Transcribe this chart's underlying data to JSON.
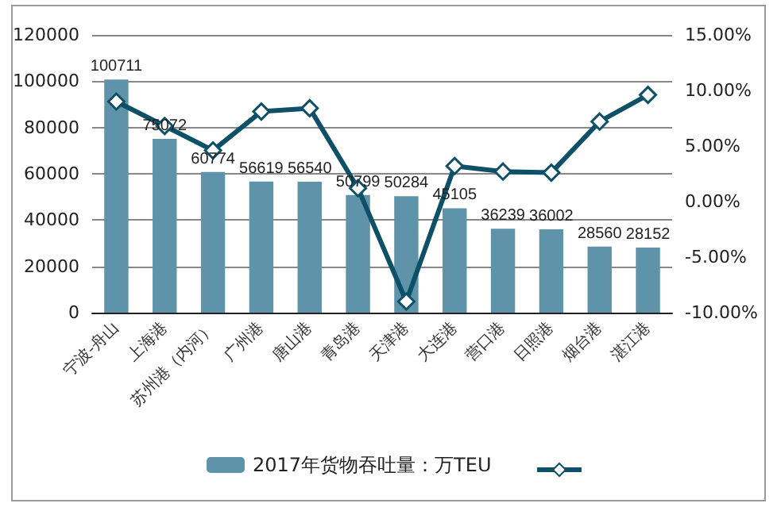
{
  "chart_data": {
    "type": "bar",
    "categories": [
      "宁波-舟山",
      "上海港",
      "苏州港（内河）",
      "广州港",
      "唐山港",
      "青岛港",
      "天津港",
      "大连港",
      "营口港",
      "日照港",
      "烟台港",
      "湛江港"
    ],
    "series": [
      {
        "name": "2017年货物吞吐量：万TEU",
        "color": "#5f93a9",
        "values": [
          100711,
          75072,
          60774,
          56619,
          56540,
          50799,
          50284,
          45105,
          36239,
          36002,
          28560,
          28152
        ],
        "data_labels": true
      },
      {
        "type": "line",
        "axis": "y2",
        "color": "#0e5068",
        "marker": "diamond",
        "values": [
          9.0,
          6.8,
          4.6,
          8.1,
          8.4,
          1.2,
          -9.0,
          3.2,
          2.7,
          2.6,
          7.2,
          9.6
        ]
      }
    ],
    "ylim": [
      0,
      120000
    ],
    "yticks": [
      0,
      20000,
      40000,
      60000,
      80000,
      100000,
      120000
    ],
    "y2lim": [
      -10,
      15
    ],
    "y2ticks": [
      {
        "value": -10,
        "label": "-10.00%"
      },
      {
        "value": -5,
        "label": "-5.00%"
      },
      {
        "value": 0,
        "label": "0.00%"
      },
      {
        "value": 5,
        "label": "5.00%"
      },
      {
        "value": 10,
        "label": "10.00%"
      },
      {
        "value": 15,
        "label": "15.00%"
      }
    ],
    "grid": "y",
    "legend": "bottom"
  }
}
